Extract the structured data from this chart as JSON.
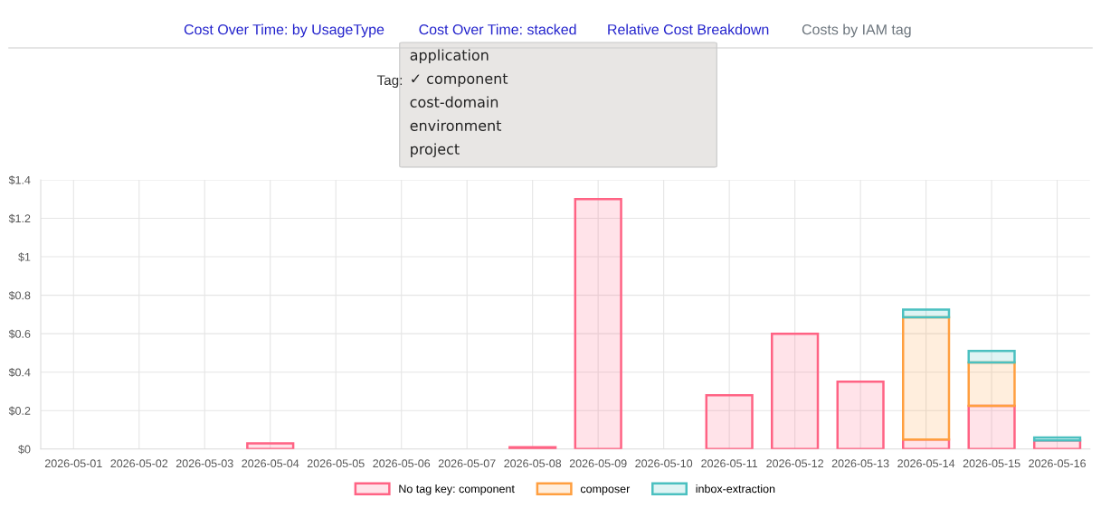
{
  "chart_data": {
    "type": "bar",
    "stacked": true,
    "categories": [
      "2026-05-01",
      "2026-05-02",
      "2026-05-03",
      "2026-05-04",
      "2026-05-05",
      "2026-05-06",
      "2026-05-07",
      "2026-05-08",
      "2026-05-09",
      "2026-05-10",
      "2026-05-11",
      "2026-05-12",
      "2026-05-13",
      "2026-05-14",
      "2026-05-15",
      "2026-05-16"
    ],
    "series": [
      {
        "name": "No tag key: component",
        "color": "#ff6384",
        "values": [
          0,
          0,
          0,
          0.03,
          0,
          0,
          0,
          0.01,
          1.3,
          0,
          0.28,
          0.6,
          0.35,
          0.05,
          0.225,
          0.045
        ]
      },
      {
        "name": "composer",
        "color": "#ff9f40",
        "values": [
          0,
          0,
          0,
          0,
          0,
          0,
          0,
          0,
          0,
          0,
          0,
          0,
          0,
          0.635,
          0.225,
          0
        ]
      },
      {
        "name": "inbox-extraction",
        "color": "#4bc0c0",
        "values": [
          0,
          0,
          0,
          0,
          0,
          0,
          0,
          0,
          0,
          0,
          0,
          0,
          0,
          0.04,
          0.06,
          0.015
        ]
      }
    ],
    "ylim": [
      0,
      1.4
    ],
    "yticks": [
      {
        "value": 0,
        "label": "$0"
      },
      {
        "value": 0.2,
        "label": "$0.2"
      },
      {
        "value": 0.4,
        "label": "$0.4"
      },
      {
        "value": 0.6,
        "label": "$0.6"
      },
      {
        "value": 0.8,
        "label": "$0.8"
      },
      {
        "value": 1,
        "label": "$1"
      },
      {
        "value": 1.2,
        "label": "$1.2"
      },
      {
        "value": 1.4,
        "label": "$1.4"
      }
    ],
    "grid": true,
    "legend": "bottom",
    "annotations": [
      "Cost Over Time: by UsageType",
      "Cost Over Time: stacked",
      "Relative Cost Breakdown",
      "Costs by IAM tag",
      "Tag:",
      "application",
      "✓ component",
      "cost-domain",
      "environment",
      "project"
    ]
  }
}
